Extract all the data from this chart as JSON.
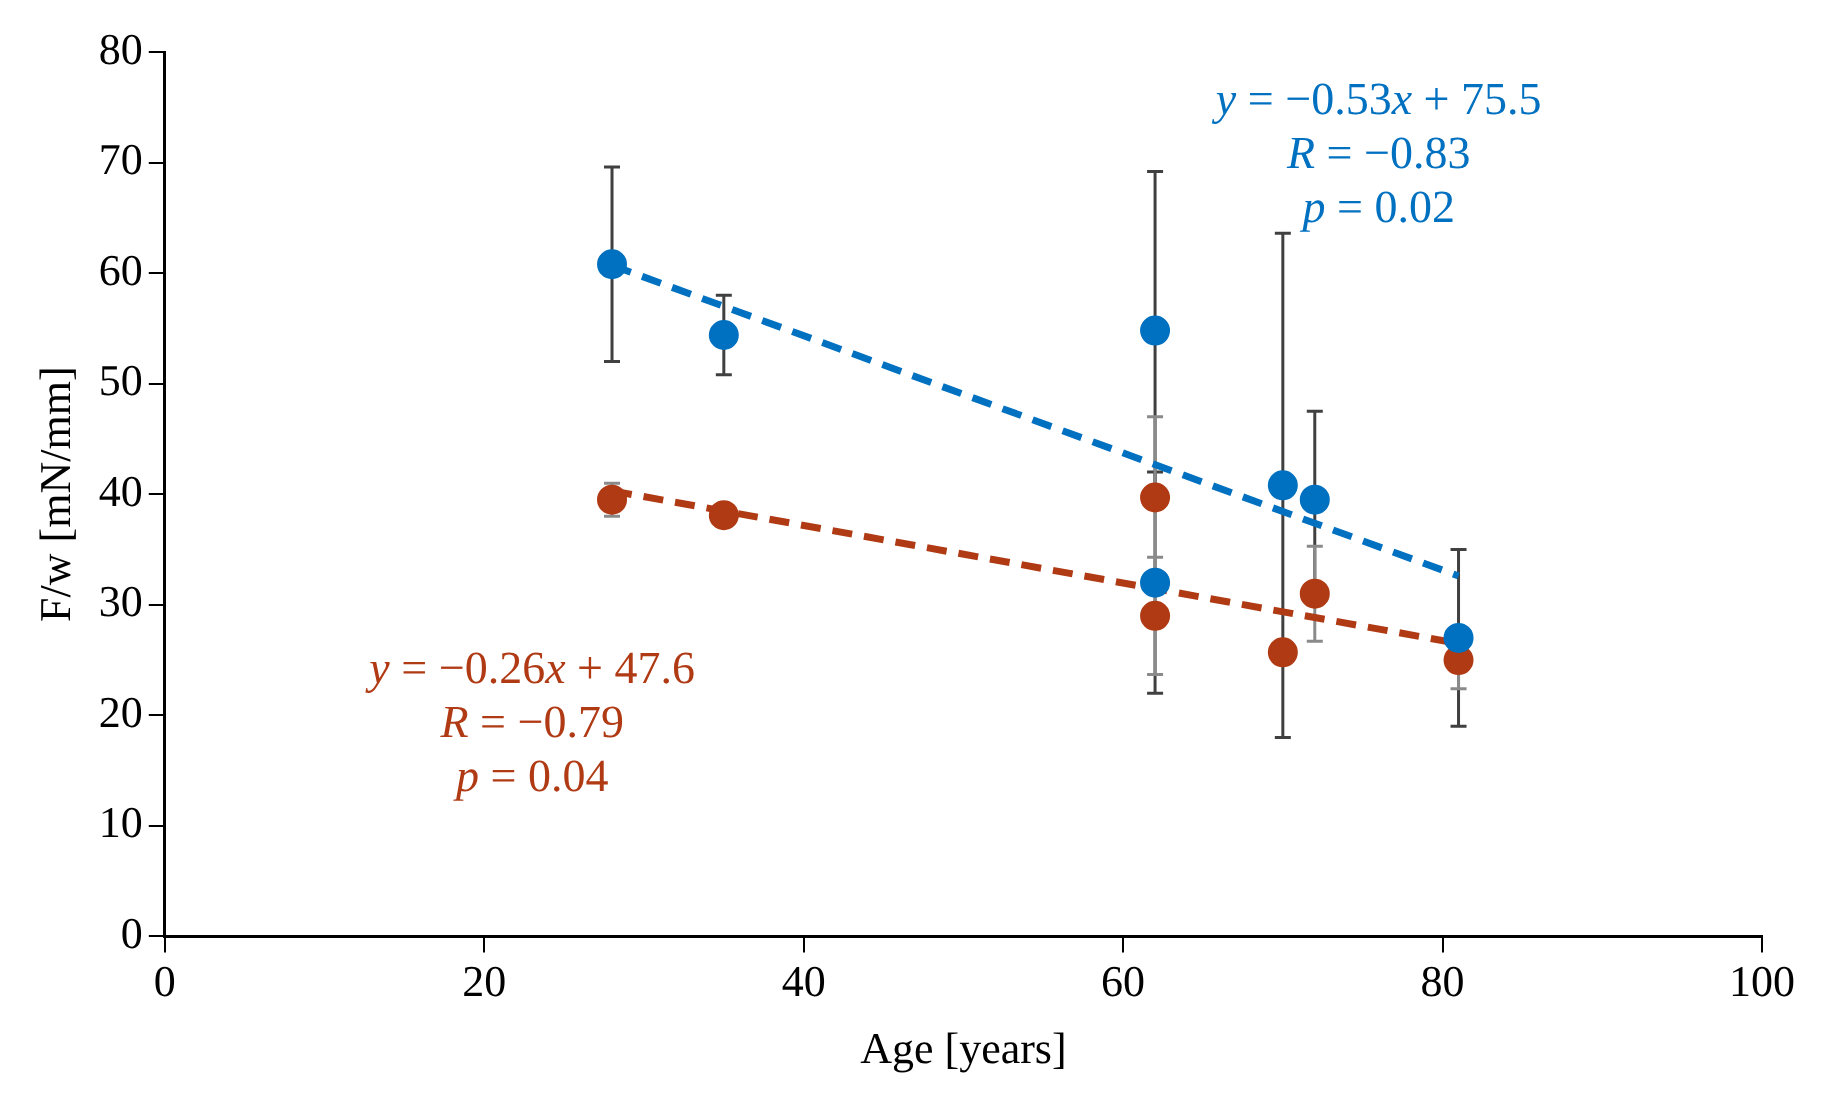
{
  "chart_data": {
    "type": "scatter",
    "xlabel": "Age [years]",
    "ylabel": "F/w [mN/mm]",
    "xlim": [
      0,
      100
    ],
    "xticks": [
      0,
      20,
      40,
      60,
      80,
      100
    ],
    "ylim": [
      0,
      80
    ],
    "yticks": [
      0,
      10,
      20,
      30,
      40,
      50,
      60,
      70,
      80
    ],
    "grid": false,
    "legend": false,
    "marker": "circle",
    "series": [
      {
        "color": "#0070c0",
        "x": [
          28,
          35,
          62,
          62,
          70,
          72,
          81
        ],
        "values": [
          60.8,
          54.4,
          54.8,
          32,
          40.8,
          39.5,
          27
        ],
        "errors": [
          8.8,
          3.6,
          14.4,
          10,
          22.8,
          8,
          8
        ]
      },
      {
        "color": "#b03a14",
        "x": [
          28,
          35,
          62,
          62,
          70,
          72,
          81
        ],
        "values": [
          39.5,
          38.1,
          39.7,
          29,
          25.7,
          31,
          25
        ],
        "errors": [
          1.5,
          null,
          7.3,
          5.3,
          null,
          4.3,
          2.6
        ]
      },
      {
        "type": "line",
        "line_style": "dashed",
        "marker": "none",
        "color": "#0070c0",
        "x": [
          28,
          81
        ],
        "values": [
          60.7,
          32.6
        ]
      },
      {
        "type": "line",
        "line_style": "dashed",
        "marker": "none",
        "color": "#b03a14",
        "x": [
          28,
          81
        ],
        "values": [
          40.3,
          26.5
        ]
      }
    ],
    "annotations": [
      "y = −0.53x + 75.5",
      "R = −0.83",
      "p = 0.02",
      "y = −0.26x + 47.6",
      "R = −0.79",
      "p = 0.04"
    ]
  }
}
